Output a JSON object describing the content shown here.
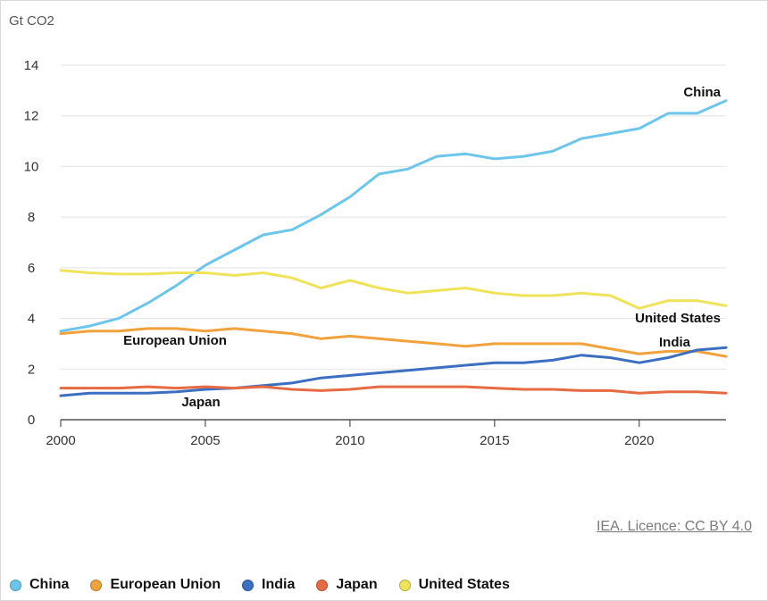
{
  "chart_data": {
    "type": "line",
    "title": "",
    "xlabel": "",
    "ylabel": "Gt CO2",
    "xlim": [
      2000,
      2023
    ],
    "ylim": [
      0,
      14
    ],
    "x_ticks": [
      2000,
      2005,
      2010,
      2015,
      2020
    ],
    "y_ticks": [
      0,
      2,
      4,
      6,
      8,
      10,
      12,
      14
    ],
    "grid": "horizontal",
    "legend_position": "bottom",
    "x": [
      2000,
      2001,
      2002,
      2003,
      2004,
      2005,
      2006,
      2007,
      2008,
      2009,
      2010,
      2011,
      2012,
      2013,
      2014,
      2015,
      2016,
      2017,
      2018,
      2019,
      2020,
      2021,
      2022,
      2023
    ],
    "series": [
      {
        "name": "China",
        "color": "#6cc6ec",
        "label": "China",
        "values": [
          3.5,
          3.7,
          4.0,
          4.6,
          5.3,
          6.1,
          6.7,
          7.3,
          7.5,
          8.1,
          8.8,
          9.7,
          9.9,
          10.4,
          10.5,
          10.3,
          10.4,
          10.6,
          11.1,
          11.3,
          11.5,
          12.1,
          12.1,
          12.6
        ]
      },
      {
        "name": "European Union",
        "color": "#f2a23b",
        "label": "European Union",
        "values": [
          3.4,
          3.5,
          3.5,
          3.6,
          3.6,
          3.5,
          3.6,
          3.5,
          3.4,
          3.2,
          3.3,
          3.2,
          3.1,
          3.0,
          2.9,
          3.0,
          3.0,
          3.0,
          3.0,
          2.8,
          2.6,
          2.7,
          2.7,
          2.5
        ]
      },
      {
        "name": "India",
        "color": "#3c6fc2",
        "label": "India",
        "values": [
          0.95,
          1.05,
          1.05,
          1.05,
          1.1,
          1.2,
          1.25,
          1.35,
          1.45,
          1.65,
          1.75,
          1.85,
          1.95,
          2.05,
          2.15,
          2.25,
          2.25,
          2.35,
          2.55,
          2.45,
          2.25,
          2.45,
          2.75,
          2.85
        ]
      },
      {
        "name": "Japan",
        "color": "#e66b43",
        "label": "Japan",
        "values": [
          1.25,
          1.25,
          1.25,
          1.3,
          1.25,
          1.3,
          1.25,
          1.3,
          1.2,
          1.15,
          1.2,
          1.3,
          1.3,
          1.3,
          1.3,
          1.25,
          1.2,
          1.2,
          1.15,
          1.15,
          1.05,
          1.1,
          1.1,
          1.05
        ]
      },
      {
        "name": "United States",
        "color": "#efe35a",
        "label": "United States",
        "values": [
          5.9,
          5.8,
          5.75,
          5.75,
          5.8,
          5.8,
          5.7,
          5.8,
          5.6,
          5.2,
          5.5,
          5.2,
          5.0,
          5.1,
          5.2,
          5.0,
          4.9,
          4.9,
          5.0,
          4.9,
          4.4,
          4.7,
          4.7,
          4.5
        ]
      }
    ]
  },
  "source": "IEA. Licence: CC BY 4.0"
}
